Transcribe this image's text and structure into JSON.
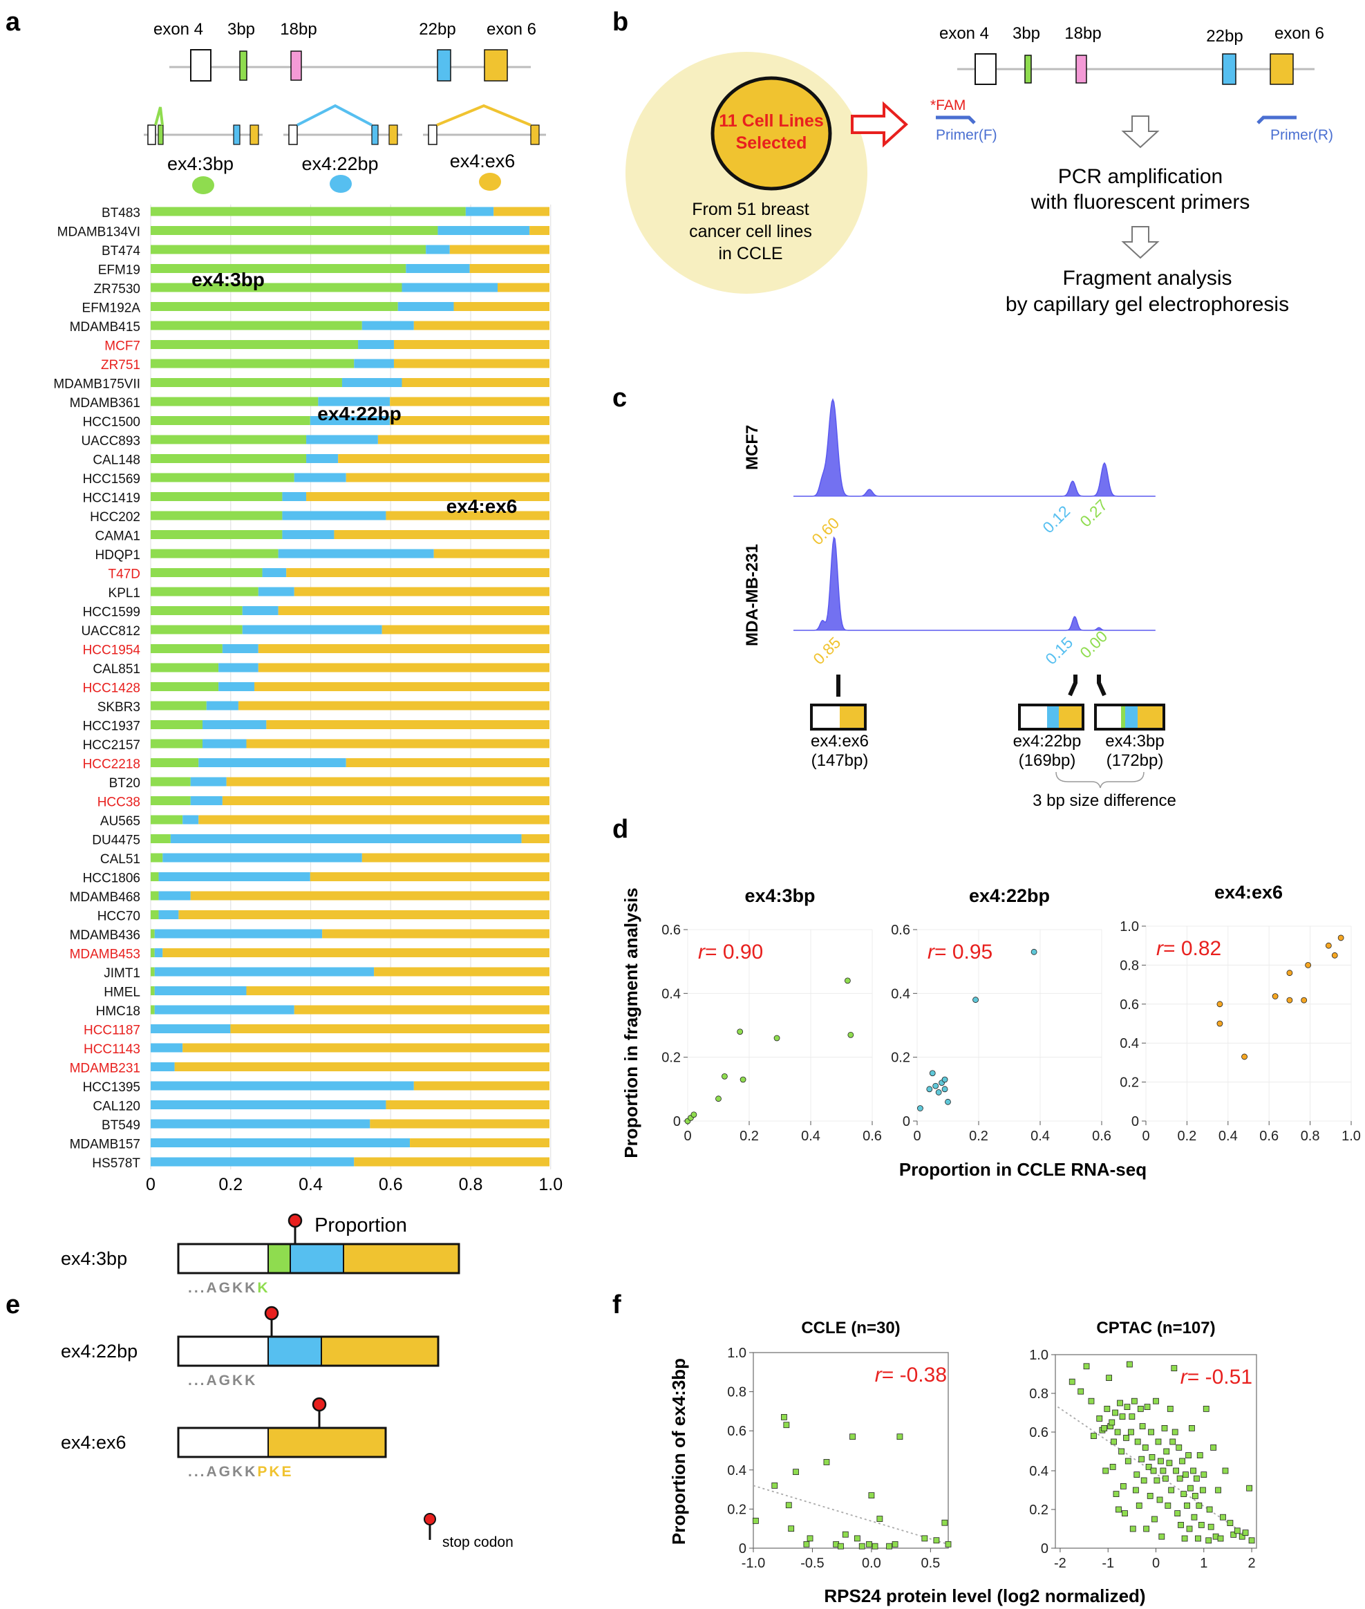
{
  "panel_letters": [
    "a",
    "b",
    "c",
    "d",
    "e",
    "f"
  ],
  "colors": {
    "ex4_3bp": "#8fdc4f",
    "ex4_22bp": "#56bff0",
    "ex4_ex6": "#f0c330",
    "exon_18bp": "#f49ad6",
    "highlight_red": "#e8201e",
    "peak": "#5a58ef",
    "primer": "#4a6fd1",
    "circle_bg": "#f7efc0"
  },
  "panel_a": {
    "exon_labels": [
      "exon 4",
      "3bp",
      "18bp",
      "22bp",
      "exon 6"
    ],
    "isoform_labels": [
      "ex4:3bp",
      "ex4:22bp",
      "ex4:ex6"
    ],
    "bar_labels": [
      "ex4:3bp",
      "ex4:22bp",
      "ex4:ex6"
    ],
    "xlabel": "Proportion",
    "xticks": [
      "0",
      "0.2",
      "0.4",
      "0.6",
      "0.8",
      "1.0"
    ]
  },
  "chart_data": [
    {
      "id": "a",
      "type": "bar",
      "orientation": "horizontal",
      "stacked": true,
      "xlabel": "Proportion",
      "xlim": [
        0,
        1
      ],
      "grid": true,
      "highlighted_categories": [
        "MCF7",
        "ZR751",
        "T47D",
        "HCC1954",
        "HCC1428",
        "HCC2218",
        "HCC38",
        "MDAMB453",
        "HCC1187",
        "HCC1143",
        "MDAMB231"
      ],
      "categories": [
        "BT483",
        "MDAMB134VI",
        "BT474",
        "EFM19",
        "ZR7530",
        "EFM192A",
        "MDAMB415",
        "MCF7",
        "ZR751",
        "MDAMB175VII",
        "MDAMB361",
        "HCC1500",
        "UACC893",
        "CAL148",
        "HCC1569",
        "HCC1419",
        "HCC202",
        "CAMA1",
        "HDQP1",
        "T47D",
        "KPL1",
        "HCC1599",
        "UACC812",
        "HCC1954",
        "CAL851",
        "HCC1428",
        "SKBR3",
        "HCC1937",
        "HCC2157",
        "HCC2218",
        "BT20",
        "HCC38",
        "AU565",
        "DU4475",
        "CAL51",
        "HCC1806",
        "MDAMB468",
        "HCC70",
        "MDAMB436",
        "MDAMB453",
        "JIMT1",
        "HMEL",
        "HMC18",
        "HCC1187",
        "HCC1143",
        "MDAMB231",
        "HCC1395",
        "CAL120",
        "BT549",
        "MDAMB157",
        "HS578T"
      ],
      "series": [
        {
          "name": "ex4:3bp",
          "values": [
            0.79,
            0.72,
            0.69,
            0.64,
            0.63,
            0.62,
            0.53,
            0.52,
            0.51,
            0.48,
            0.42,
            0.4,
            0.39,
            0.39,
            0.36,
            0.33,
            0.33,
            0.33,
            0.32,
            0.28,
            0.27,
            0.23,
            0.23,
            0.18,
            0.17,
            0.17,
            0.14,
            0.13,
            0.13,
            0.12,
            0.1,
            0.1,
            0.08,
            0.05,
            0.03,
            0.02,
            0.02,
            0.02,
            0.01,
            0.01,
            0.01,
            0.01,
            0.01,
            0.0,
            0.0,
            0.0,
            0.0,
            0.0,
            0.0,
            0.0,
            0.0
          ]
        },
        {
          "name": "ex4:22bp",
          "values": [
            0.07,
            0.23,
            0.06,
            0.16,
            0.24,
            0.14,
            0.13,
            0.09,
            0.1,
            0.15,
            0.18,
            0.2,
            0.18,
            0.08,
            0.13,
            0.06,
            0.26,
            0.13,
            0.39,
            0.06,
            0.09,
            0.09,
            0.35,
            0.09,
            0.1,
            0.09,
            0.08,
            0.16,
            0.11,
            0.37,
            0.09,
            0.08,
            0.04,
            0.88,
            0.5,
            0.38,
            0.08,
            0.05,
            0.42,
            0.02,
            0.55,
            0.23,
            0.35,
            0.2,
            0.08,
            0.06,
            0.66,
            0.59,
            0.55,
            0.65,
            0.51
          ]
        },
        {
          "name": "ex4:ex6",
          "values": [
            0.14,
            0.05,
            0.25,
            0.2,
            0.13,
            0.24,
            0.34,
            0.39,
            0.39,
            0.37,
            0.4,
            0.4,
            0.43,
            0.53,
            0.51,
            0.61,
            0.41,
            0.54,
            0.29,
            0.66,
            0.64,
            0.68,
            0.42,
            0.73,
            0.73,
            0.74,
            0.78,
            0.71,
            0.76,
            0.51,
            0.81,
            0.82,
            0.88,
            0.07,
            0.47,
            0.6,
            0.9,
            0.93,
            0.57,
            0.97,
            0.44,
            0.76,
            0.64,
            0.8,
            0.92,
            0.94,
            0.34,
            0.41,
            0.45,
            0.35,
            0.49
          ]
        }
      ]
    },
    {
      "id": "c",
      "type": "line",
      "title": "",
      "traces": [
        {
          "name": "MCF7",
          "peak_labels": [
            "0.60",
            "0.12",
            "0.27"
          ]
        },
        {
          "name": "MDA-MB-231",
          "peak_labels": [
            "0.85",
            "0.15",
            "0.00"
          ]
        }
      ]
    },
    {
      "id": "d1",
      "type": "scatter",
      "title": "ex4:3bp",
      "xlim": [
        0,
        0.6
      ],
      "ylim": [
        0,
        0.6
      ],
      "xticks": [
        "0",
        "0.2",
        "0.4",
        "0.6"
      ],
      "yticks": [
        "0",
        "0.2",
        "0.4",
        "0.6"
      ],
      "r_label": "= 0.90",
      "points": [
        [
          0.0,
          0.0
        ],
        [
          0.01,
          0.01
        ],
        [
          0.02,
          0.02
        ],
        [
          0.1,
          0.07
        ],
        [
          0.12,
          0.14
        ],
        [
          0.17,
          0.28
        ],
        [
          0.18,
          0.13
        ],
        [
          0.29,
          0.26
        ],
        [
          0.52,
          0.44
        ],
        [
          0.53,
          0.27
        ]
      ]
    },
    {
      "id": "d2",
      "type": "scatter",
      "title": "ex4:22bp",
      "xlim": [
        0,
        0.6
      ],
      "ylim": [
        0,
        0.6
      ],
      "xticks": [
        "0",
        "0.2",
        "0.4",
        "0.6"
      ],
      "yticks": [
        "0",
        "0.2",
        "0.4",
        "0.6"
      ],
      "r_label": "= 0.95",
      "points": [
        [
          0.01,
          0.04
        ],
        [
          0.04,
          0.1
        ],
        [
          0.05,
          0.15
        ],
        [
          0.06,
          0.11
        ],
        [
          0.07,
          0.09
        ],
        [
          0.08,
          0.12
        ],
        [
          0.09,
          0.13
        ],
        [
          0.09,
          0.1
        ],
        [
          0.1,
          0.06
        ],
        [
          0.19,
          0.38
        ],
        [
          0.38,
          0.53
        ]
      ]
    },
    {
      "id": "d3",
      "type": "scatter",
      "title": "ex4:ex6",
      "xlim": [
        0,
        1.0
      ],
      "ylim": [
        0,
        1.0
      ],
      "xticks": [
        "0",
        "0.2",
        "0.4",
        "0.6",
        "0.8",
        "1.0"
      ],
      "yticks": [
        "0",
        "0.2",
        "0.4",
        "0.6",
        "0.8",
        "1.0"
      ],
      "r_label": "= 0.82",
      "points": [
        [
          0.36,
          0.6
        ],
        [
          0.36,
          0.5
        ],
        [
          0.48,
          0.33
        ],
        [
          0.63,
          0.64
        ],
        [
          0.7,
          0.76
        ],
        [
          0.7,
          0.62
        ],
        [
          0.77,
          0.62
        ],
        [
          0.79,
          0.8
        ],
        [
          0.89,
          0.9
        ],
        [
          0.92,
          0.85
        ],
        [
          0.95,
          0.94
        ]
      ]
    },
    {
      "id": "f1",
      "type": "scatter",
      "title": "CCLE (n=30)",
      "xlim": [
        -1.0,
        0.65
      ],
      "ylim": [
        0,
        1.0
      ],
      "xticks": [
        "-1.0",
        "-0.5",
        "0.0",
        "0.5"
      ],
      "yticks": [
        "0",
        "0.2",
        "0.4",
        "0.6",
        "0.8",
        "1.0"
      ],
      "r_label": "= -0.38",
      "trend": [
        [
          -1.0,
          0.32
        ],
        [
          0.65,
          0.02
        ]
      ],
      "points": [
        [
          -0.98,
          0.14
        ],
        [
          -0.82,
          0.32
        ],
        [
          -0.74,
          0.67
        ],
        [
          -0.72,
          0.63
        ],
        [
          -0.7,
          0.22
        ],
        [
          -0.68,
          0.1
        ],
        [
          -0.64,
          0.39
        ],
        [
          -0.55,
          0.02
        ],
        [
          -0.52,
          0.05
        ],
        [
          -0.38,
          0.44
        ],
        [
          -0.3,
          0.02
        ],
        [
          -0.26,
          0.01
        ],
        [
          -0.22,
          0.07
        ],
        [
          -0.16,
          0.57
        ],
        [
          -0.12,
          0.05
        ],
        [
          -0.08,
          0.01
        ],
        [
          -0.02,
          0.02
        ],
        [
          0.0,
          0.27
        ],
        [
          0.03,
          0.01
        ],
        [
          0.07,
          0.15
        ],
        [
          0.15,
          0.01
        ],
        [
          0.2,
          0.02
        ],
        [
          0.24,
          0.57
        ],
        [
          0.45,
          0.05
        ],
        [
          0.55,
          0.04
        ],
        [
          0.62,
          0.13
        ],
        [
          0.65,
          0.02
        ]
      ]
    },
    {
      "id": "f2",
      "type": "scatter",
      "title": "CPTAC (n=107)",
      "xlim": [
        -2.1,
        2.1
      ],
      "ylim": [
        0,
        1.0
      ],
      "xticks": [
        "-2",
        "-1",
        "0",
        "1",
        "2"
      ],
      "yticks": [
        "0",
        "0.2",
        "0.4",
        "0.6",
        "0.8",
        "1.0"
      ],
      "r_label": "= -0.51",
      "trend": [
        [
          -2.05,
          0.73
        ],
        [
          2.05,
          0.04
        ]
      ],
      "points": [
        [
          -1.75,
          0.86
        ],
        [
          -1.57,
          0.81
        ],
        [
          -1.45,
          0.94
        ],
        [
          -1.35,
          0.76
        ],
        [
          -1.3,
          0.58
        ],
        [
          -1.18,
          0.67
        ],
        [
          -1.12,
          0.61
        ],
        [
          -1.08,
          0.62
        ],
        [
          -1.05,
          0.4
        ],
        [
          -1.02,
          0.72
        ],
        [
          -0.98,
          0.88
        ],
        [
          -0.95,
          0.63
        ],
        [
          -0.92,
          0.65
        ],
        [
          -0.9,
          0.42
        ],
        [
          -0.88,
          0.55
        ],
        [
          -0.85,
          0.7
        ],
        [
          -0.83,
          0.28
        ],
        [
          -0.8,
          0.6
        ],
        [
          -0.78,
          0.2
        ],
        [
          -0.75,
          0.75
        ],
        [
          -0.72,
          0.5
        ],
        [
          -0.7,
          0.68
        ],
        [
          -0.68,
          0.32
        ],
        [
          -0.65,
          0.18
        ],
        [
          -0.62,
          0.57
        ],
        [
          -0.6,
          0.73
        ],
        [
          -0.58,
          0.45
        ],
        [
          -0.55,
          0.95
        ],
        [
          -0.52,
          0.6
        ],
        [
          -0.5,
          0.68
        ],
        [
          -0.48,
          0.1
        ],
        [
          -0.45,
          0.76
        ],
        [
          -0.42,
          0.3
        ],
        [
          -0.4,
          0.38
        ],
        [
          -0.38,
          0.55
        ],
        [
          -0.35,
          0.22
        ],
        [
          -0.32,
          0.72
        ],
        [
          -0.3,
          0.46
        ],
        [
          -0.28,
          0.63
        ],
        [
          -0.25,
          0.35
        ],
        [
          -0.22,
          0.52
        ],
        [
          -0.2,
          0.1
        ],
        [
          -0.18,
          0.73
        ],
        [
          -0.15,
          0.42
        ],
        [
          -0.12,
          0.27
        ],
        [
          -0.1,
          0.6
        ],
        [
          -0.08,
          0.47
        ],
        [
          -0.05,
          0.4
        ],
        [
          -0.03,
          0.15
        ],
        [
          0.0,
          0.76
        ],
        [
          0.02,
          0.35
        ],
        [
          0.05,
          0.55
        ],
        [
          0.08,
          0.25
        ],
        [
          0.1,
          0.45
        ],
        [
          0.12,
          0.06
        ],
        [
          0.15,
          0.4
        ],
        [
          0.18,
          0.62
        ],
        [
          0.2,
          0.36
        ],
        [
          0.22,
          0.5
        ],
        [
          0.25,
          0.22
        ],
        [
          0.28,
          0.44
        ],
        [
          0.3,
          0.72
        ],
        [
          0.32,
          0.3
        ],
        [
          0.35,
          0.55
        ],
        [
          0.38,
          0.93
        ],
        [
          0.4,
          0.6
        ],
        [
          0.42,
          0.4
        ],
        [
          0.45,
          0.18
        ],
        [
          0.48,
          0.52
        ],
        [
          0.5,
          0.36
        ],
        [
          0.52,
          0.12
        ],
        [
          0.55,
          0.45
        ],
        [
          0.58,
          0.28
        ],
        [
          0.6,
          0.05
        ],
        [
          0.62,
          0.38
        ],
        [
          0.65,
          0.22
        ],
        [
          0.68,
          0.48
        ],
        [
          0.7,
          0.1
        ],
        [
          0.72,
          0.31
        ],
        [
          0.75,
          0.62
        ],
        [
          0.78,
          0.4
        ],
        [
          0.8,
          0.16
        ],
        [
          0.82,
          0.27
        ],
        [
          0.85,
          0.36
        ],
        [
          0.88,
          0.05
        ],
        [
          0.9,
          0.22
        ],
        [
          0.92,
          0.48
        ],
        [
          0.95,
          0.12
        ],
        [
          0.98,
          0.3
        ],
        [
          1.0,
          0.38
        ],
        [
          1.05,
          0.72
        ],
        [
          1.1,
          0.04
        ],
        [
          1.12,
          0.2
        ],
        [
          1.15,
          0.11
        ],
        [
          1.2,
          0.52
        ],
        [
          1.25,
          0.06
        ],
        [
          1.3,
          0.3
        ],
        [
          1.35,
          0.05
        ],
        [
          1.4,
          0.16
        ],
        [
          1.45,
          0.4
        ],
        [
          1.55,
          0.13
        ],
        [
          1.62,
          0.07
        ],
        [
          1.7,
          0.09
        ],
        [
          1.8,
          0.06
        ],
        [
          1.87,
          0.08
        ],
        [
          1.95,
          0.31
        ],
        [
          2.0,
          0.04
        ]
      ]
    }
  ],
  "panel_b": {
    "circle_inner": [
      "11 Cell Lines",
      "Selected"
    ],
    "circle_outer": [
      "From 51 breast",
      "cancer cell lines",
      "in CCLE"
    ],
    "exon_labels": [
      "exon 4",
      "3bp",
      "18bp",
      "22bp",
      "exon 6"
    ],
    "fam": "*FAM",
    "primer_f": "Primer(F)",
    "primer_r": "Primer(R)",
    "step1": [
      "PCR amplification",
      "with fluorescent primers"
    ],
    "step2": [
      "Fragment analysis",
      "by capillary gel electrophoresis"
    ]
  },
  "panel_c": {
    "fragments": [
      {
        "label": "ex4:ex6",
        "size": "(147bp)"
      },
      {
        "label": "ex4:22bp",
        "size": "(169bp)"
      },
      {
        "label": "ex4:3bp",
        "size": "(172bp)"
      }
    ],
    "size_note": "3 bp size difference"
  },
  "panel_d": {
    "ylabel": "Proportion in fragment analysis",
    "xlabel": "Proportion in CCLE RNA-seq",
    "r_symbol": "r"
  },
  "panel_e": {
    "rows": [
      {
        "label": "ex4:3bp",
        "seq_gray": "...AGKK",
        "seq_color": "K"
      },
      {
        "label": "ex4:22bp",
        "seq_gray": "...AGKK",
        "seq_color": ""
      },
      {
        "label": "ex4:ex6",
        "seq_gray": "...AGKK",
        "seq_color": "PKE"
      }
    ],
    "legend": "stop codon"
  },
  "panel_f": {
    "ylabel": "Proportion of ex4:3bp",
    "xlabel": "RPS24 protein level (log2 normalized)",
    "r_symbol": "r"
  }
}
